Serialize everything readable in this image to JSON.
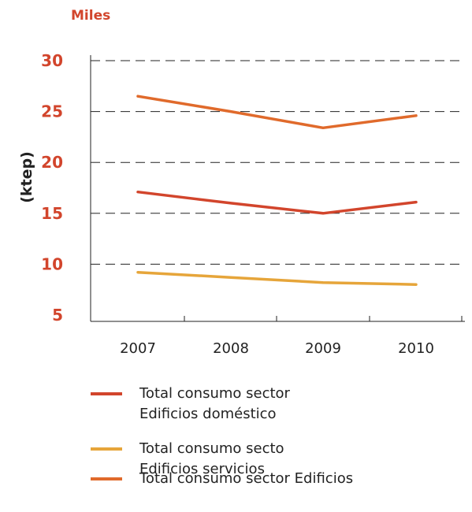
{
  "chart_data": {
    "type": "line",
    "unit_label": "Miles",
    "ylabel": "(ktep)",
    "xlabel": "",
    "title": "",
    "categories": [
      "2007",
      "2008",
      "2009",
      "2010"
    ],
    "yticks": [
      5,
      10,
      15,
      20,
      25,
      30
    ],
    "ylim": [
      5,
      31
    ],
    "grid": true,
    "legend_position": "bottom",
    "series": [
      {
        "legend_lines": [
          "Total consumo sector",
          "Edificios doméstico"
        ],
        "color": "#d2452c",
        "values": [
          17.1,
          16.0,
          15.0,
          16.1
        ]
      },
      {
        "legend_lines": [
          "Total consumo secto",
          "Edificios servicios"
        ],
        "color": "#e6a53a",
        "values": [
          9.2,
          8.7,
          8.2,
          8.0
        ]
      },
      {
        "legend_lines": [
          "Total consumo sector Edificios"
        ],
        "color": "#e06a2b",
        "values": [
          26.5,
          25.0,
          23.4,
          24.6
        ]
      }
    ],
    "colors": {
      "tick_label": "#d2452c",
      "axis_text": "#222222",
      "grid": "#222222"
    }
  }
}
